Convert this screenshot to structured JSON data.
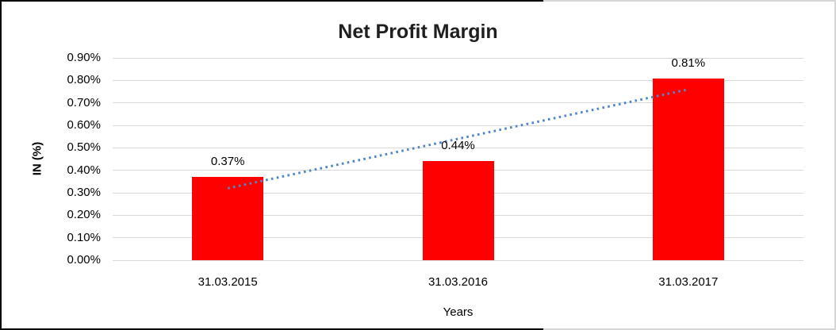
{
  "chart_data": {
    "type": "bar",
    "title": "Net Profit Margin",
    "xlabel": "Years",
    "ylabel": "IN (%)",
    "categories": [
      "31.03.2015",
      "31.03.2016",
      "31.03.2017"
    ],
    "values": [
      0.37,
      0.44,
      0.81
    ],
    "data_labels": [
      "0.37%",
      "0.44%",
      "0.81%"
    ],
    "ylim": [
      0,
      0.9
    ],
    "ytick_step": 0.1,
    "ytick_labels": [
      "0.90%",
      "0.80%",
      "0.70%",
      "0.60%",
      "0.50%",
      "0.40%",
      "0.30%",
      "0.20%",
      "0.10%",
      "0.00%"
    ],
    "grid": true,
    "legend": "none",
    "colors": {
      "bar": "#ff0000",
      "gridline": "#d9d9d9",
      "trendline": "#4f86c6",
      "title_text": "#1f1f1f",
      "axis_text": "#000000"
    },
    "trendline": {
      "type": "linear",
      "style": "dotted",
      "start_value": 0.32,
      "end_value": 0.76
    }
  }
}
